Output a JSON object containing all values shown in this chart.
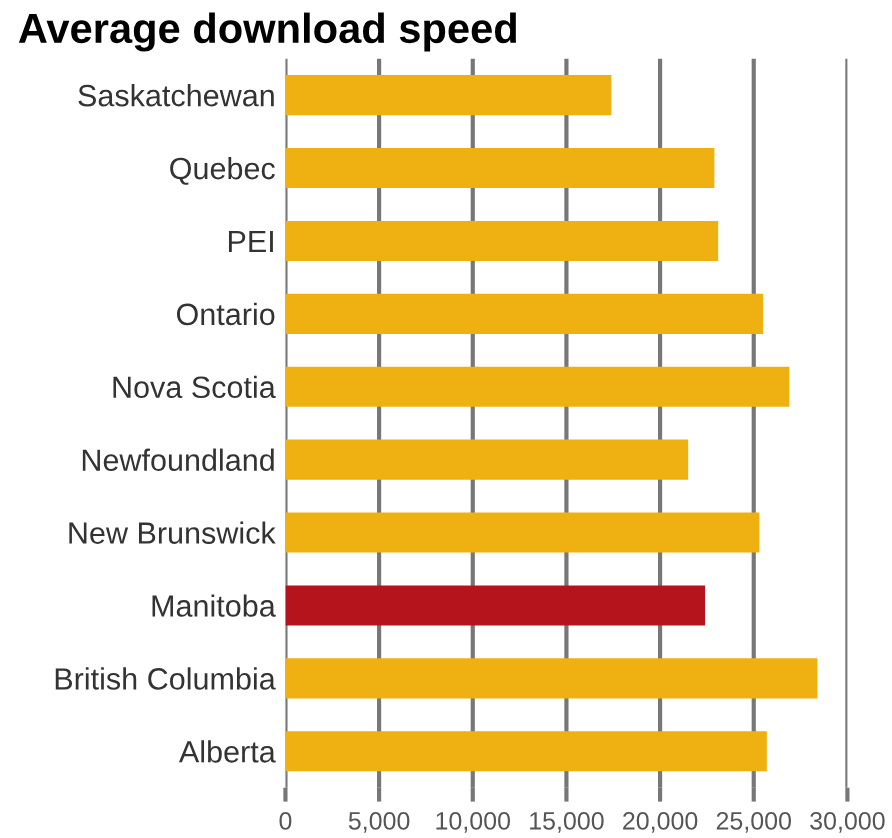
{
  "chart_data": {
    "type": "bar",
    "orientation": "horizontal",
    "title": "Average download speed",
    "categories": [
      "Saskatchewan",
      "Quebec",
      "PEI",
      "Ontario",
      "Nova Scotia",
      "Newfoundland",
      "New Brunswick",
      "Manitoba",
      "British Columbia",
      "Alberta"
    ],
    "values": [
      17400,
      22900,
      23100,
      25500,
      26900,
      21500,
      25300,
      22400,
      28400,
      25700
    ],
    "colors": [
      "#eeb111",
      "#eeb111",
      "#eeb111",
      "#eeb111",
      "#eeb111",
      "#eeb111",
      "#eeb111",
      "#b5141d",
      "#eeb111",
      "#eeb111"
    ],
    "xlim": [
      0,
      30000
    ],
    "xticks": [
      {
        "value": 0,
        "label": "0"
      },
      {
        "value": 5000,
        "label": "5,000"
      },
      {
        "value": 10000,
        "label": "10,000"
      },
      {
        "value": 15000,
        "label": "15,000"
      },
      {
        "value": 20000,
        "label": "20,000"
      },
      {
        "value": 25000,
        "label": "25,000"
      },
      {
        "value": 30000,
        "label": "30,000"
      }
    ],
    "grid": "x"
  }
}
